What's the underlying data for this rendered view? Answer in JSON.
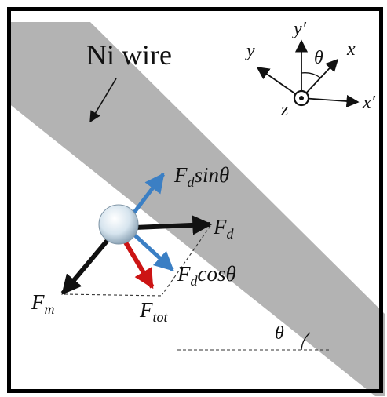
{
  "figure": {
    "wire_label": "Ni wire",
    "axes": {
      "y_prime": "y′",
      "y": "y",
      "x": "x",
      "x_prime": "x′",
      "z": "z",
      "theta": "θ"
    },
    "forces": {
      "fd_sin": {
        "main": "F",
        "sub": "d",
        "tail": "sinθ"
      },
      "fd": {
        "main": "F",
        "sub": "d"
      },
      "fd_cos": {
        "main": "F",
        "sub": "d",
        "tail": "cosθ"
      },
      "fm": {
        "main": "F",
        "sub": "m"
      },
      "ftot": {
        "main": "F",
        "sub": "tot"
      }
    },
    "angle_label": "θ"
  },
  "colors": {
    "wire": "#b3b3b3",
    "border": "#000000",
    "arrow_black": "#111111",
    "arrow_blue": "#3b7fc4",
    "arrow_red": "#cc1414",
    "dashed": "#333333",
    "bead": "#c8dcea"
  }
}
